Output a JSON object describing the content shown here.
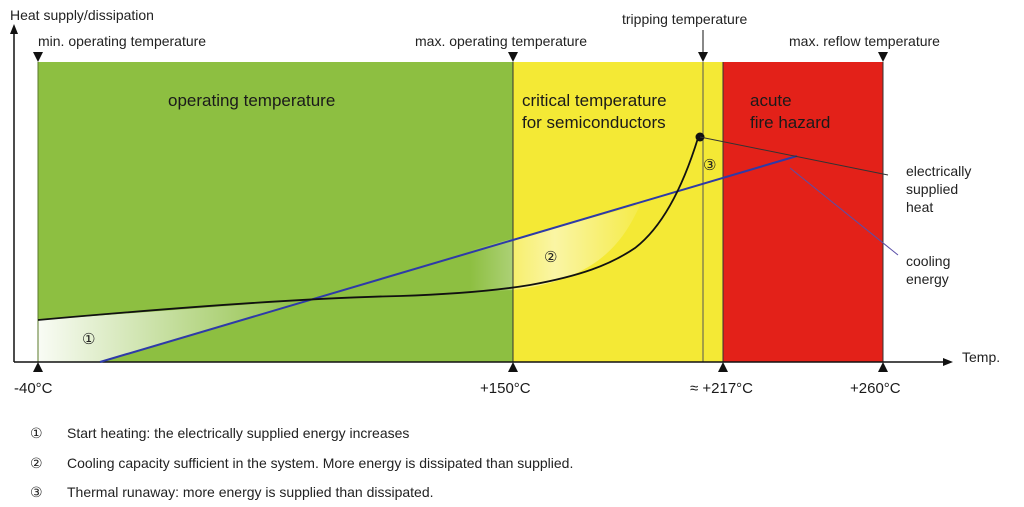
{
  "axes": {
    "y_label": "Heat supply/dissipation",
    "x_label": "Temp."
  },
  "markers_top": {
    "min_operating": "min. operating temperature",
    "max_operating": "max. operating temperature",
    "tripping": "tripping temperature",
    "max_reflow": "max. reflow temperature"
  },
  "zones": {
    "operating": {
      "label": "operating temperature",
      "color": "#8dbf41"
    },
    "critical": {
      "line1": "critical temperature",
      "line2": "for semiconductors",
      "color": "#f4e935"
    },
    "fire": {
      "line1": "acute",
      "line2": "fire hazard",
      "color": "#e32119"
    }
  },
  "ticks": {
    "t1": "-40°C",
    "t2": "+150°C",
    "t3": "≈ +217°C",
    "t4": "+260°C"
  },
  "curve_labels": {
    "supplied": [
      "electrically",
      "supplied",
      "heat"
    ],
    "cooling": [
      "cooling",
      "energy"
    ]
  },
  "phase_markers": [
    "①",
    "②",
    "③"
  ],
  "legend": [
    {
      "marker": "①",
      "text": "Start heating: the electrically supplied energy increases"
    },
    {
      "marker": "②",
      "text": "Cooling capacity sufficient in the system. More energy is dissipated than supplied."
    },
    {
      "marker": "③",
      "text": "Thermal runaway: more energy is supplied than dissipated."
    }
  ],
  "colors": {
    "supplied_curve": "#111111",
    "cooling_line": "#2e3aa8"
  }
}
